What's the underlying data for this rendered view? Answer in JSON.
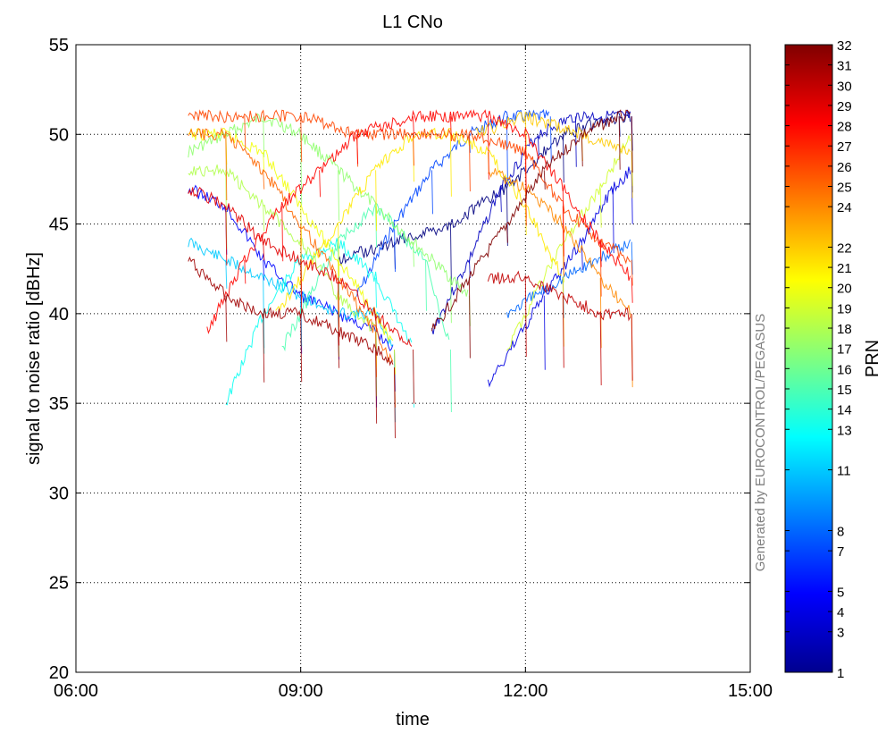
{
  "chart_data": {
    "type": "scatter",
    "title": "L1 CNo",
    "xlabel": "time",
    "ylabel": "signal to noise ratio  [dBHz]",
    "xlim": [
      "06:00",
      "15:00"
    ],
    "ylim": [
      20,
      55
    ],
    "x_ticks": [
      "06:00",
      "09:00",
      "12:00",
      "15:00"
    ],
    "y_ticks": [
      20,
      25,
      30,
      35,
      40,
      45,
      50,
      55
    ],
    "grid": true,
    "colorbar": {
      "label": "PRN",
      "range": [
        1,
        32
      ],
      "ticks": [
        1,
        3,
        4,
        5,
        7,
        8,
        11,
        13,
        14,
        15,
        16,
        17,
        18,
        19,
        20,
        21,
        22,
        24,
        25,
        26,
        27,
        28,
        29,
        30,
        31,
        32
      ],
      "colormap": "jet"
    },
    "watermark": "Generated by EUROCONTROL/PEGASUS",
    "series": [
      {
        "prn": 1,
        "points": [
          [
            "09:30",
            43
          ],
          [
            "10:15",
            44
          ],
          [
            "11:00",
            45
          ],
          [
            "11:45",
            47
          ],
          [
            "12:30",
            50
          ],
          [
            "13:15",
            51
          ],
          [
            "13:25",
            51
          ]
        ]
      },
      {
        "prn": 3,
        "points": [
          [
            "10:45",
            39
          ],
          [
            "11:15",
            43
          ],
          [
            "11:40",
            47
          ],
          [
            "12:10",
            50
          ],
          [
            "12:40",
            51
          ],
          [
            "13:25",
            51
          ]
        ]
      },
      {
        "prn": 4,
        "points": [
          [
            "11:30",
            36
          ],
          [
            "12:15",
            41
          ],
          [
            "12:45",
            44
          ],
          [
            "13:10",
            47
          ],
          [
            "13:25",
            48
          ]
        ]
      },
      {
        "prn": 5,
        "points": [
          [
            "07:30",
            47
          ],
          [
            "08:00",
            46
          ],
          [
            "08:30",
            43
          ],
          [
            "09:00",
            41
          ],
          [
            "09:30",
            40
          ],
          [
            "10:00",
            39
          ],
          [
            "10:15",
            38
          ]
        ]
      },
      {
        "prn": 7,
        "points": [
          [
            "09:45",
            41
          ],
          [
            "10:15",
            45
          ],
          [
            "10:45",
            48
          ],
          [
            "11:15",
            50
          ],
          [
            "11:45",
            51
          ],
          [
            "12:20",
            51
          ]
        ]
      },
      {
        "prn": 8,
        "points": [
          [
            "11:45",
            40
          ],
          [
            "12:30",
            42
          ],
          [
            "13:25",
            44
          ]
        ]
      },
      {
        "prn": 11,
        "points": [
          [
            "07:30",
            44
          ],
          [
            "08:00",
            43
          ],
          [
            "08:30",
            42
          ],
          [
            "09:00",
            41
          ],
          [
            "09:30",
            40
          ],
          [
            "10:00",
            40
          ],
          [
            "10:15",
            38
          ]
        ]
      },
      {
        "prn": 13,
        "points": [
          [
            "08:00",
            35
          ],
          [
            "08:30",
            40
          ],
          [
            "09:00",
            43
          ],
          [
            "09:30",
            44
          ],
          [
            "10:00",
            42
          ],
          [
            "10:30",
            38
          ]
        ]
      },
      {
        "prn": 15,
        "points": [
          [
            "08:45",
            38
          ],
          [
            "09:30",
            44
          ],
          [
            "10:00",
            46
          ],
          [
            "10:40",
            43
          ],
          [
            "11:00",
            38
          ]
        ]
      },
      {
        "prn": 17,
        "points": [
          [
            "07:30",
            49
          ],
          [
            "08:00",
            50
          ],
          [
            "08:30",
            51
          ],
          [
            "09:00",
            50
          ],
          [
            "09:30",
            48
          ],
          [
            "10:00",
            46
          ],
          [
            "10:30",
            44
          ],
          [
            "11:00",
            42
          ],
          [
            "11:15",
            41
          ]
        ]
      },
      {
        "prn": 18,
        "points": [
          [
            "07:30",
            48
          ],
          [
            "08:00",
            48
          ],
          [
            "08:30",
            46
          ],
          [
            "09:00",
            44
          ],
          [
            "09:30",
            41
          ],
          [
            "10:00",
            39
          ]
        ]
      },
      {
        "prn": 19,
        "points": [
          [
            "11:45",
            38
          ],
          [
            "12:30",
            44
          ],
          [
            "13:00",
            47
          ],
          [
            "13:25",
            50
          ]
        ]
      },
      {
        "prn": 20,
        "points": [
          [
            "07:30",
            50
          ],
          [
            "08:00",
            50
          ],
          [
            "08:30",
            49
          ],
          [
            "09:00",
            46
          ],
          [
            "09:30",
            43
          ],
          [
            "10:00",
            40
          ],
          [
            "10:15",
            38
          ]
        ]
      },
      {
        "prn": 21,
        "points": [
          [
            "08:40",
            40
          ],
          [
            "09:30",
            45
          ],
          [
            "10:00",
            48
          ],
          [
            "10:30",
            50
          ],
          [
            "11:00",
            50
          ],
          [
            "11:30",
            49
          ],
          [
            "12:00",
            46
          ],
          [
            "12:30",
            42
          ]
        ]
      },
      {
        "prn": 22,
        "points": [
          [
            "11:20",
            50
          ],
          [
            "12:00",
            51
          ],
          [
            "12:45",
            50
          ],
          [
            "13:25",
            49
          ]
        ]
      },
      {
        "prn": 24,
        "points": [
          [
            "11:30",
            48
          ],
          [
            "12:00",
            47
          ],
          [
            "12:30",
            45
          ],
          [
            "13:00",
            42
          ],
          [
            "13:25",
            40
          ]
        ]
      },
      {
        "prn": 25,
        "points": [
          [
            "07:30",
            50
          ],
          [
            "08:00",
            50
          ],
          [
            "08:30",
            48
          ],
          [
            "09:00",
            45
          ],
          [
            "09:30",
            42
          ],
          [
            "10:00",
            39
          ],
          [
            "10:15",
            37
          ]
        ]
      },
      {
        "prn": 26,
        "points": [
          [
            "07:30",
            51
          ],
          [
            "08:15",
            51
          ],
          [
            "09:00",
            51
          ],
          [
            "09:45",
            50
          ],
          [
            "10:30",
            50
          ],
          [
            "11:15",
            50
          ],
          [
            "12:00",
            49
          ],
          [
            "12:30",
            46
          ],
          [
            "13:00",
            44
          ],
          [
            "13:25",
            43
          ]
        ]
      },
      {
        "prn": 28,
        "points": [
          [
            "07:45",
            39
          ],
          [
            "08:15",
            43
          ],
          [
            "08:45",
            46
          ],
          [
            "09:15",
            48
          ],
          [
            "09:45",
            50
          ],
          [
            "10:30",
            51
          ],
          [
            "11:00",
            51
          ],
          [
            "11:30",
            51
          ],
          [
            "12:00",
            50
          ],
          [
            "12:30",
            47
          ],
          [
            "13:00",
            44
          ],
          [
            "13:25",
            42
          ]
        ]
      },
      {
        "prn": 29,
        "points": [
          [
            "07:30",
            47
          ],
          [
            "08:00",
            46
          ],
          [
            "08:30",
            44
          ],
          [
            "09:00",
            43
          ],
          [
            "09:30",
            42
          ],
          [
            "10:00",
            40
          ],
          [
            "10:30",
            38
          ]
        ]
      },
      {
        "prn": 30,
        "points": [
          [
            "11:30",
            42
          ],
          [
            "12:00",
            42
          ],
          [
            "12:30",
            41
          ],
          [
            "13:00",
            40
          ],
          [
            "13:25",
            40
          ]
        ]
      },
      {
        "prn": 31,
        "points": [
          [
            "07:30",
            43
          ],
          [
            "08:00",
            41
          ],
          [
            "08:30",
            40
          ],
          [
            "09:00",
            40
          ],
          [
            "09:30",
            39
          ],
          [
            "10:00",
            38
          ],
          [
            "10:15",
            37
          ]
        ]
      },
      {
        "prn": 32,
        "points": [
          [
            "10:45",
            39
          ],
          [
            "11:15",
            42
          ],
          [
            "11:45",
            45
          ],
          [
            "12:15",
            48
          ],
          [
            "12:45",
            50
          ],
          [
            "13:15",
            51
          ],
          [
            "13:25",
            51
          ]
        ]
      }
    ]
  }
}
